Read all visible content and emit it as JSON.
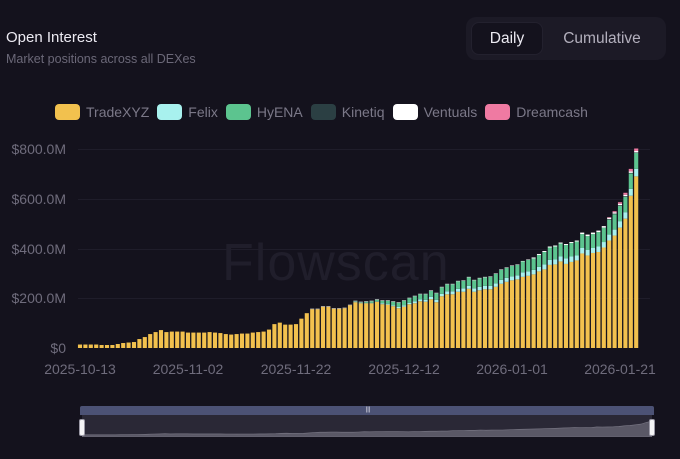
{
  "header": {
    "title": "Open Interest",
    "subtitle": "Market positions across all DEXes"
  },
  "toggle": {
    "options": [
      {
        "label": "Daily",
        "active": true
      },
      {
        "label": "Cumulative",
        "active": false
      }
    ]
  },
  "watermark": "Flowscan",
  "colors": {
    "background": "#14121d",
    "TradeXYZ": "#f2c14e",
    "Felix": "#a8f1ee",
    "HyENA": "#5cc48f",
    "Kinetiq": "#2b3f43",
    "Ventuals": "#ffffff",
    "Dreamcash": "#ef7aa2"
  },
  "chart_data": {
    "type": "bar",
    "stacked": true,
    "title": "Open Interest",
    "subtitle": "Market positions across all DEXes",
    "xlabel": "",
    "ylabel": "",
    "ylim": [
      0,
      800
    ],
    "y_unit": "$M",
    "yticks": [
      "$0",
      "$200.0M",
      "$400.0M",
      "$600.0M",
      "$800.0M"
    ],
    "xticks": [
      "2025-10-13",
      "2025-11-02",
      "2025-11-22",
      "2025-12-12",
      "2026-01-01",
      "2026-01-21"
    ],
    "grid": true,
    "legend_position": "top",
    "start_date": "2025-10-13",
    "x_note": "daily bars, one per day from 2025-10-13 to 2026-01-24",
    "series": [
      {
        "name": "TradeXYZ",
        "values": [
          14,
          14,
          14,
          14,
          12,
          12,
          12,
          16,
          20,
          22,
          24,
          36,
          44,
          56,
          64,
          72,
          64,
          66,
          66,
          66,
          62,
          62,
          62,
          62,
          64,
          62,
          60,
          56,
          54,
          56,
          58,
          58,
          62,
          64,
          66,
          74,
          96,
          102,
          94,
          94,
          96,
          118,
          140,
          156,
          156,
          166,
          166,
          158,
          158,
          160,
          172,
          184,
          180,
          180,
          180,
          186,
          176,
          174,
          168,
          160,
          166,
          176,
          180,
          188,
          186,
          196,
          184,
          208,
          216,
          216,
          226,
          226,
          238,
          226,
          232,
          236,
          236,
          246,
          258,
          266,
          272,
          276,
          286,
          290,
          296,
          308,
          316,
          334,
          336,
          348,
          338,
          346,
          352,
          380,
          372,
          382,
          386,
          404,
          432,
          452,
          484,
          520,
          612,
          690
        ]
      },
      {
        "name": "Felix",
        "values": [
          0,
          0,
          0,
          0,
          0,
          0,
          0,
          0,
          0,
          0,
          0,
          0,
          0,
          0,
          0,
          0,
          0,
          0,
          0,
          0,
          0,
          0,
          0,
          0,
          0,
          0,
          0,
          0,
          0,
          0,
          0,
          0,
          0,
          0,
          0,
          0,
          0,
          0,
          0,
          0,
          0,
          0,
          0,
          0,
          0,
          0,
          0,
          0,
          0,
          0,
          0,
          2,
          2,
          2,
          2,
          2,
          4,
          4,
          4,
          6,
          6,
          6,
          8,
          8,
          8,
          10,
          10,
          10,
          12,
          12,
          12,
          14,
          12,
          14,
          14,
          14,
          14,
          14,
          16,
          16,
          16,
          16,
          18,
          18,
          18,
          18,
          20,
          20,
          20,
          20,
          22,
          22,
          20,
          22,
          22,
          20,
          22,
          22,
          24,
          24,
          26,
          26,
          28,
          30
        ]
      },
      {
        "name": "HyENA",
        "values": [
          0,
          0,
          0,
          0,
          0,
          0,
          0,
          0,
          0,
          0,
          0,
          0,
          0,
          0,
          0,
          0,
          0,
          0,
          0,
          0,
          0,
          0,
          0,
          0,
          0,
          0,
          0,
          0,
          0,
          0,
          0,
          0,
          0,
          0,
          0,
          0,
          0,
          0,
          0,
          0,
          0,
          0,
          0,
          0,
          0,
          0,
          0,
          0,
          0,
          0,
          0,
          2,
          2,
          4,
          6,
          6,
          10,
          12,
          14,
          16,
          18,
          18,
          20,
          20,
          22,
          24,
          26,
          26,
          28,
          28,
          30,
          30,
          34,
          32,
          34,
          34,
          36,
          38,
          40,
          40,
          42,
          42,
          44,
          46,
          46,
          48,
          50,
          50,
          52,
          52,
          54,
          54,
          56,
          56,
          56,
          56,
          58,
          58,
          60,
          62,
          62,
          62,
          62,
          64
        ]
      },
      {
        "name": "Kinetiq",
        "values": [
          0,
          0,
          0,
          0,
          0,
          0,
          0,
          0,
          0,
          0,
          0,
          0,
          0,
          0,
          0,
          0,
          0,
          0,
          0,
          0,
          0,
          0,
          0,
          0,
          0,
          0,
          0,
          0,
          0,
          0,
          0,
          0,
          0,
          0,
          0,
          0,
          0,
          0,
          0,
          0,
          0,
          0,
          0,
          0,
          0,
          0,
          0,
          0,
          0,
          0,
          0,
          0,
          0,
          0,
          0,
          0,
          0,
          0,
          0,
          0,
          0,
          0,
          0,
          0,
          0,
          0,
          0,
          0,
          0,
          0,
          0,
          0,
          0,
          0,
          0,
          0,
          0,
          0,
          0,
          0,
          0,
          0,
          0,
          0,
          0,
          0,
          0,
          0,
          0,
          0,
          0,
          0,
          0,
          0,
          0,
          0,
          0,
          0,
          2,
          2,
          2,
          2,
          2,
          2
        ]
      },
      {
        "name": "Ventuals",
        "values": [
          0,
          0,
          0,
          0,
          0,
          0,
          0,
          0,
          0,
          0,
          0,
          0,
          0,
          0,
          0,
          0,
          0,
          0,
          0,
          0,
          0,
          0,
          0,
          0,
          0,
          0,
          0,
          0,
          0,
          0,
          0,
          0,
          0,
          0,
          0,
          0,
          0,
          0,
          0,
          0,
          0,
          0,
          0,
          2,
          2,
          2,
          2,
          2,
          2,
          2,
          2,
          2,
          2,
          2,
          2,
          2,
          2,
          2,
          2,
          2,
          2,
          2,
          2,
          2,
          2,
          2,
          2,
          2,
          2,
          2,
          2,
          2,
          2,
          2,
          2,
          2,
          2,
          2,
          2,
          2,
          2,
          2,
          2,
          2,
          4,
          4,
          4,
          4,
          4,
          4,
          4,
          4,
          4,
          6,
          6,
          6,
          6,
          6,
          6,
          6,
          6,
          6,
          6,
          6
        ]
      },
      {
        "name": "Dreamcash",
        "values": [
          0,
          0,
          0,
          0,
          0,
          0,
          0,
          0,
          0,
          0,
          0,
          0,
          0,
          0,
          0,
          0,
          0,
          0,
          0,
          0,
          0,
          0,
          0,
          0,
          0,
          0,
          0,
          0,
          0,
          0,
          0,
          0,
          0,
          0,
          0,
          0,
          0,
          0,
          0,
          0,
          0,
          0,
          0,
          0,
          0,
          0,
          0,
          0,
          0,
          0,
          0,
          0,
          0,
          0,
          0,
          0,
          0,
          0,
          0,
          0,
          0,
          0,
          0,
          0,
          0,
          0,
          0,
          0,
          0,
          0,
          0,
          0,
          0,
          0,
          0,
          0,
          0,
          0,
          0,
          0,
          0,
          0,
          0,
          0,
          0,
          0,
          0,
          0,
          0,
          0,
          0,
          0,
          0,
          0,
          0,
          0,
          0,
          0,
          2,
          4,
          6,
          8,
          10,
          10
        ]
      }
    ]
  },
  "datazoom": {
    "start": 0,
    "end": 100,
    "grip_glyph": "|||"
  }
}
